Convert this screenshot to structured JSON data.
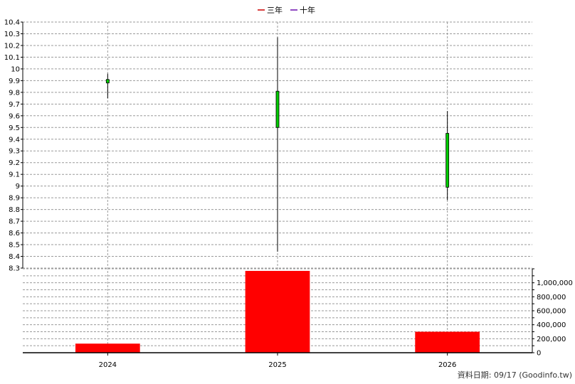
{
  "legend": [
    {
      "label": "三年",
      "color": "#cc0000"
    },
    {
      "label": "十年",
      "color": "#6a0dad"
    }
  ],
  "footer": "資料日期: 09/17  (Goodinfo.tw)",
  "chart_data": {
    "type": "candlestick+bar",
    "categories": [
      "2024",
      "2025",
      "2026"
    ],
    "price_axis": {
      "ylim": [
        8.3,
        10.4
      ],
      "ticks": [
        "8.3",
        "8.4",
        "8.5",
        "8.6",
        "8.7",
        "8.8",
        "8.9",
        "9",
        "9.1",
        "9.2",
        "9.3",
        "9.4",
        "9.5",
        "9.6",
        "9.7",
        "9.8",
        "9.9",
        "10",
        "10.1",
        "10.2",
        "10.3",
        "10.4"
      ]
    },
    "candles": [
      {
        "category": "2024",
        "open": 9.88,
        "close": 9.91,
        "high": 9.96,
        "low": 9.75
      },
      {
        "category": "2025",
        "open": 9.5,
        "close": 9.81,
        "high": 10.27,
        "low": 8.44
      },
      {
        "category": "2026",
        "open": 8.99,
        "close": 9.45,
        "high": 9.64,
        "low": 8.88
      }
    ],
    "candle_color": "#00cc00",
    "volume_axis": {
      "ylim": [
        0,
        1200000
      ],
      "ticks": [
        "0",
        "200,000",
        "400,000",
        "600,000",
        "800,000",
        "1,000,000"
      ]
    },
    "volume": [
      130000,
      1170000,
      300000
    ],
    "volume_color": "#ff0000",
    "grid": true
  }
}
